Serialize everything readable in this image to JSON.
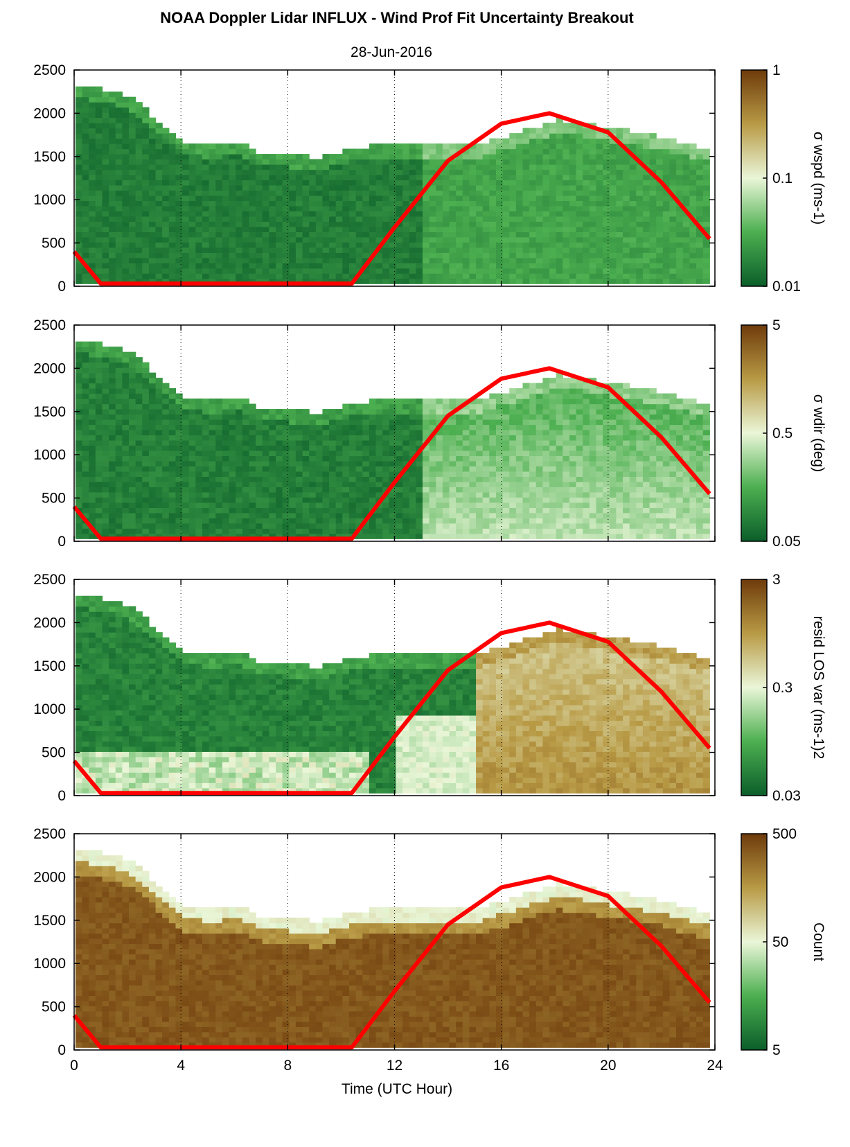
{
  "title": "NOAA Doppler Lidar INFLUX - Wind Prof Fit Uncertainty Breakout",
  "subtitle": "28-Jun-2016",
  "xlabel": "Time (UTC Hour)",
  "x_ticks": [
    "0",
    "4",
    "8",
    "12",
    "16",
    "20",
    "24"
  ],
  "y_ticks": [
    "0",
    "500",
    "1000",
    "1500",
    "2000",
    "2500"
  ],
  "colorbars": [
    {
      "label": "σ wspd (ms-1)",
      "ticks": [
        "1",
        "0.1",
        "0.01"
      ]
    },
    {
      "label": "σ wdir (deg)",
      "ticks": [
        "5",
        "0.5",
        "0.05"
      ]
    },
    {
      "label": "resid LOS var (ms-1)2",
      "ticks": [
        "3",
        "0.3",
        "0.03"
      ]
    },
    {
      "label": "Count",
      "ticks": [
        "500",
        "50",
        "5"
      ]
    }
  ],
  "colors": {
    "low": "#0b5e2a",
    "mid": "#e9f5d6",
    "high": "#6e3b0b",
    "sun_curve": "#ff0000"
  },
  "chart_data": [
    {
      "type": "heatmap",
      "title": "",
      "xlabel": "",
      "ylabel": "",
      "xlim": [
        0,
        24
      ],
      "ylim": [
        0,
        2500
      ],
      "color_scale": "log",
      "colorbar_range": [
        0.01,
        1
      ],
      "colorbar_label": "σ wspd (ms-1)",
      "value_description": "mostly dark green (~0.01-0.02) below top of layer; brighter green (~0.02-0.05) 13-24 UTC",
      "layer_top_m": [
        [
          0,
          2300
        ],
        [
          1,
          2250
        ],
        [
          2,
          2150
        ],
        [
          3,
          1900
        ],
        [
          4,
          1650
        ],
        [
          5,
          1600
        ],
        [
          6,
          1650
        ],
        [
          7,
          1500
        ],
        [
          8,
          1500
        ],
        [
          9,
          1450
        ],
        [
          10,
          1550
        ],
        [
          11,
          1600
        ],
        [
          12,
          1600
        ],
        [
          13,
          1600
        ],
        [
          14,
          1600
        ],
        [
          15,
          1600
        ],
        [
          16,
          1700
        ],
        [
          17,
          1800
        ],
        [
          18,
          1900
        ],
        [
          19,
          1850
        ],
        [
          20,
          1800
        ],
        [
          21,
          1750
        ],
        [
          22,
          1700
        ],
        [
          23,
          1600
        ],
        [
          23.8,
          1550
        ]
      ],
      "sun_curve": [
        [
          0,
          400
        ],
        [
          1.0,
          30
        ],
        [
          10.4,
          30
        ],
        [
          12,
          680
        ],
        [
          14,
          1450
        ],
        [
          16,
          1880
        ],
        [
          17.8,
          2000
        ],
        [
          20,
          1780
        ],
        [
          22,
          1200
        ],
        [
          23.8,
          550
        ]
      ]
    },
    {
      "type": "heatmap",
      "title": "",
      "xlabel": "",
      "ylabel": "",
      "xlim": [
        0,
        24
      ],
      "ylim": [
        0,
        2500
      ],
      "color_scale": "log",
      "colorbar_range": [
        0.05,
        5
      ],
      "colorbar_label": "σ wdir (deg)",
      "value_description": "dark green (~0.05-0.1) 0-12 UTC; light green (~0.2-0.5) near surface 13-24 UTC",
      "layer_top_m": [
        [
          0,
          2300
        ],
        [
          1,
          2250
        ],
        [
          2,
          2150
        ],
        [
          3,
          1900
        ],
        [
          4,
          1650
        ],
        [
          5,
          1600
        ],
        [
          6,
          1650
        ],
        [
          7,
          1500
        ],
        [
          8,
          1500
        ],
        [
          9,
          1450
        ],
        [
          10,
          1550
        ],
        [
          11,
          1600
        ],
        [
          12,
          1600
        ],
        [
          13,
          1600
        ],
        [
          14,
          1600
        ],
        [
          15,
          1600
        ],
        [
          16,
          1700
        ],
        [
          17,
          1800
        ],
        [
          18,
          1900
        ],
        [
          19,
          1850
        ],
        [
          20,
          1800
        ],
        [
          21,
          1750
        ],
        [
          22,
          1700
        ],
        [
          23,
          1600
        ],
        [
          23.8,
          1550
        ]
      ],
      "sun_curve": [
        [
          0,
          400
        ],
        [
          1.0,
          30
        ],
        [
          10.4,
          30
        ],
        [
          12,
          680
        ],
        [
          14,
          1450
        ],
        [
          16,
          1880
        ],
        [
          17.8,
          2000
        ],
        [
          20,
          1780
        ],
        [
          22,
          1200
        ],
        [
          23.8,
          550
        ]
      ]
    },
    {
      "type": "heatmap",
      "title": "",
      "xlabel": "",
      "ylabel": "",
      "xlim": [
        0,
        24
      ],
      "ylim": [
        0,
        2500
      ],
      "color_scale": "log",
      "colorbar_range": [
        0.03,
        3
      ],
      "colorbar_label": "resid LOS var (ms-1)2",
      "value_description": "dark green (~0.03-0.05) aloft at night; pale to olive (~0.3-1) near surface and 15-24 UTC",
      "layer_top_m": [
        [
          0,
          2300
        ],
        [
          1,
          2250
        ],
        [
          2,
          2150
        ],
        [
          3,
          1900
        ],
        [
          4,
          1650
        ],
        [
          5,
          1600
        ],
        [
          6,
          1650
        ],
        [
          7,
          1500
        ],
        [
          8,
          1500
        ],
        [
          9,
          1450
        ],
        [
          10,
          1550
        ],
        [
          11,
          1600
        ],
        [
          12,
          1600
        ],
        [
          13,
          1600
        ],
        [
          14,
          1600
        ],
        [
          15,
          1600
        ],
        [
          16,
          1700
        ],
        [
          17,
          1800
        ],
        [
          18,
          1900
        ],
        [
          19,
          1850
        ],
        [
          20,
          1800
        ],
        [
          21,
          1750
        ],
        [
          22,
          1700
        ],
        [
          23,
          1600
        ],
        [
          23.8,
          1550
        ]
      ],
      "sun_curve": [
        [
          0,
          400
        ],
        [
          1.0,
          30
        ],
        [
          10.4,
          30
        ],
        [
          12,
          680
        ],
        [
          14,
          1450
        ],
        [
          16,
          1880
        ],
        [
          17.8,
          2000
        ],
        [
          20,
          1780
        ],
        [
          22,
          1200
        ],
        [
          23.8,
          550
        ]
      ]
    },
    {
      "type": "heatmap",
      "title": "",
      "xlabel": "Time (UTC Hour)",
      "ylabel": "",
      "xlim": [
        0,
        24
      ],
      "ylim": [
        0,
        2500
      ],
      "color_scale": "log",
      "colorbar_range": [
        1,
        500
      ],
      "colorbar_label": "Count",
      "value_description": "dark brown (~300-500) through most of layer; lighter toward layer top",
      "layer_top_m": [
        [
          0,
          2300
        ],
        [
          1,
          2250
        ],
        [
          2,
          2150
        ],
        [
          3,
          1900
        ],
        [
          4,
          1650
        ],
        [
          5,
          1600
        ],
        [
          6,
          1650
        ],
        [
          7,
          1500
        ],
        [
          8,
          1500
        ],
        [
          9,
          1450
        ],
        [
          10,
          1550
        ],
        [
          11,
          1600
        ],
        [
          12,
          1600
        ],
        [
          13,
          1600
        ],
        [
          14,
          1600
        ],
        [
          15,
          1600
        ],
        [
          16,
          1700
        ],
        [
          17,
          1800
        ],
        [
          18,
          1900
        ],
        [
          19,
          1850
        ],
        [
          20,
          1800
        ],
        [
          21,
          1750
        ],
        [
          22,
          1700
        ],
        [
          23,
          1600
        ],
        [
          23.8,
          1550
        ]
      ],
      "sun_curve": [
        [
          0,
          400
        ],
        [
          1.0,
          30
        ],
        [
          10.4,
          30
        ],
        [
          12,
          680
        ],
        [
          14,
          1450
        ],
        [
          16,
          1880
        ],
        [
          17.8,
          2000
        ],
        [
          20,
          1780
        ],
        [
          22,
          1200
        ],
        [
          23.8,
          550
        ]
      ]
    }
  ]
}
